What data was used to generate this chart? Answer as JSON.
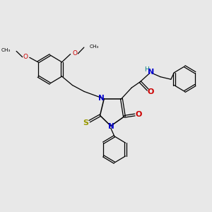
{
  "background_color": "#e8e8e8",
  "bond_color": "#000000",
  "N_color": "#0000cc",
  "O_color": "#cc0000",
  "S_color": "#999900",
  "H_color": "#008080",
  "figsize": [
    3.0,
    3.0
  ],
  "dpi": 100,
  "xlim": [
    0,
    10
  ],
  "ylim": [
    0,
    10
  ]
}
